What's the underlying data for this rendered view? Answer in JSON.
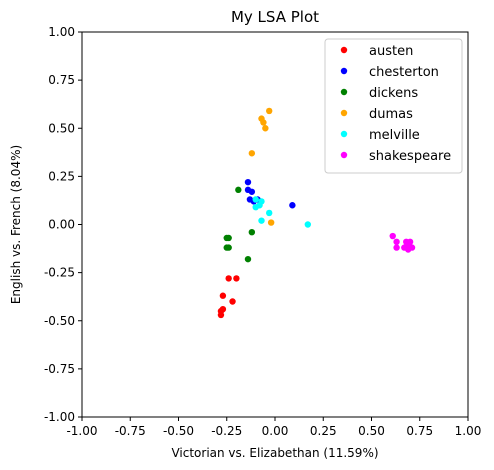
{
  "chart_data": {
    "type": "scatter",
    "title": "My LSA Plot",
    "xlabel": "Victorian vs. Elizabethan (11.59%)",
    "ylabel": "English vs. French (8.04%)",
    "xlim": [
      -1.0,
      1.0
    ],
    "ylim": [
      -1.0,
      1.0
    ],
    "xticks": [
      "-1.00",
      "-0.75",
      "-0.50",
      "-0.25",
      "0.00",
      "0.25",
      "0.50",
      "0.75",
      "1.00"
    ],
    "yticks": [
      "-1.00",
      "-0.75",
      "-0.50",
      "-0.25",
      "0.00",
      "0.25",
      "0.50",
      "0.75",
      "1.00"
    ],
    "grid": false,
    "legend_position": "top-right",
    "series": [
      {
        "name": "austen",
        "color": "#ff0000",
        "points": [
          [
            -0.28,
            -0.45
          ],
          [
            -0.28,
            -0.47
          ],
          [
            -0.27,
            -0.44
          ],
          [
            -0.27,
            -0.37
          ],
          [
            -0.24,
            -0.28
          ],
          [
            -0.22,
            -0.4
          ],
          [
            -0.2,
            -0.28
          ]
        ]
      },
      {
        "name": "chesterton",
        "color": "#0000ff",
        "points": [
          [
            -0.14,
            0.22
          ],
          [
            -0.14,
            0.18
          ],
          [
            -0.12,
            0.17
          ],
          [
            -0.13,
            0.13
          ],
          [
            -0.11,
            0.12
          ],
          [
            -0.09,
            0.13
          ],
          [
            0.09,
            0.1
          ]
        ]
      },
      {
        "name": "dickens",
        "color": "#008000",
        "points": [
          [
            -0.25,
            -0.07
          ],
          [
            -0.24,
            -0.07
          ],
          [
            -0.25,
            -0.12
          ],
          [
            -0.24,
            -0.12
          ],
          [
            -0.12,
            -0.04
          ],
          [
            -0.14,
            -0.18
          ],
          [
            -0.19,
            0.18
          ]
        ]
      },
      {
        "name": "dumas",
        "color": "#ffa500",
        "points": [
          [
            -0.03,
            0.59
          ],
          [
            -0.07,
            0.55
          ],
          [
            -0.06,
            0.53
          ],
          [
            -0.05,
            0.5
          ],
          [
            -0.12,
            0.37
          ],
          [
            -0.02,
            0.01
          ]
        ]
      },
      {
        "name": "melville",
        "color": "#00ffff",
        "points": [
          [
            -0.1,
            0.13
          ],
          [
            -0.08,
            0.1
          ],
          [
            -0.1,
            0.09
          ],
          [
            -0.07,
            0.12
          ],
          [
            -0.03,
            0.06
          ],
          [
            -0.07,
            0.02
          ],
          [
            0.17,
            0.0
          ]
        ]
      },
      {
        "name": "shakespeare",
        "color": "#ff00ff",
        "points": [
          [
            0.61,
            -0.06
          ],
          [
            0.63,
            -0.09
          ],
          [
            0.63,
            -0.12
          ],
          [
            0.67,
            -0.12
          ],
          [
            0.68,
            -0.09
          ],
          [
            0.69,
            -0.13
          ],
          [
            0.7,
            -0.09
          ],
          [
            0.71,
            -0.12
          ],
          [
            0.69,
            -0.1
          ]
        ]
      }
    ]
  }
}
